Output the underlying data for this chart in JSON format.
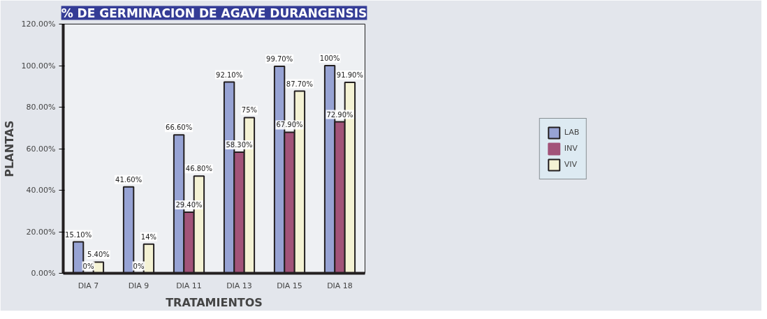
{
  "chart_data": {
    "type": "bar",
    "title": "% DE GERMINACION DE AGAVE DURANGENSIS",
    "xlabel": "TRATAMIENTOS",
    "ylabel": "PLANTAS",
    "categories": [
      "DIA 7",
      "DIA 9",
      "DIA 11",
      "DIA 13",
      "DIA 15",
      "DIA 18"
    ],
    "series": [
      {
        "name": "LAB",
        "color": "#97a3d4",
        "values": [
          15.1,
          41.6,
          66.6,
          92.1,
          99.7,
          100
        ],
        "value_labels": [
          "15.10%",
          "41.60%",
          "66.60%",
          "92.10%",
          "99.70%",
          "100%"
        ]
      },
      {
        "name": "INV",
        "color": "#a25379",
        "values": [
          0,
          0,
          29.4,
          58.3,
          67.9,
          72.9
        ],
        "value_labels": [
          "0%",
          "0%",
          "29.40%",
          "58.30%",
          "67.90%",
          "72.90%"
        ]
      },
      {
        "name": "VIV",
        "color": "#f4f2d4",
        "values": [
          5.4,
          14,
          46.8,
          75,
          87.7,
          91.9
        ],
        "value_labels": [
          "5.40%",
          "14%",
          "46.80%",
          "75%",
          "87.70%",
          "91.90%"
        ]
      }
    ],
    "ylim": [
      0,
      120
    ],
    "yticks": [
      {
        "value": 0,
        "label": "0.00%"
      },
      {
        "value": 20,
        "label": "20.00%"
      },
      {
        "value": 40,
        "label": "40.00%"
      },
      {
        "value": 60,
        "label": "60.00%"
      },
      {
        "value": 80,
        "label": "80.00%"
      },
      {
        "value": 100,
        "label": "100.00%"
      },
      {
        "value": 120,
        "label": "120.00%"
      }
    ],
    "grid": false,
    "legend": "right"
  }
}
